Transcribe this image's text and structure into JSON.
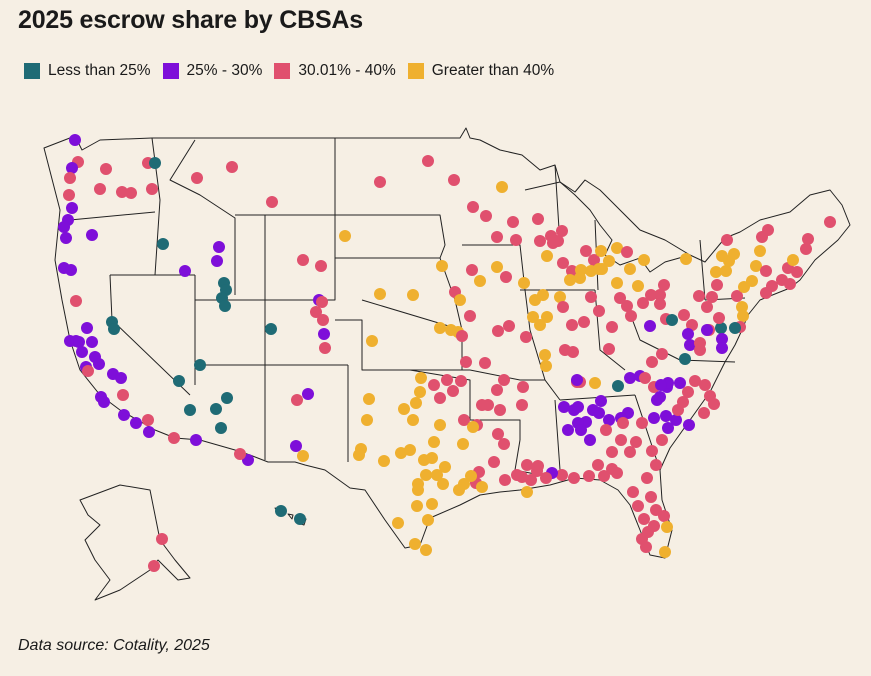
{
  "title": "2025 escrow share by CBSAs",
  "source": "Data source: Cotality, 2025",
  "legend": [
    {
      "label": "Less than 25%",
      "color": "#1f6b75"
    },
    {
      "label": "25% - 30%",
      "color": "#7e0fd9"
    },
    {
      "label": "30.01% - 40%",
      "color": "#e0506e"
    },
    {
      "label": "Greater than 40%",
      "color": "#efb02f"
    }
  ]
}
